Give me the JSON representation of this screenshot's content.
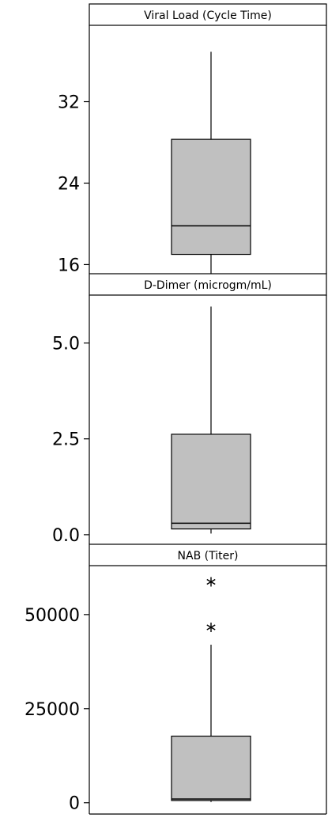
{
  "chart_data": [
    {
      "type": "box",
      "title": "Viral Load (Cycle Time)",
      "ylim": [
        15.1,
        39.5
      ],
      "ticks": [
        16,
        24,
        32
      ],
      "tick_labels": [
        "16",
        "24",
        "32"
      ],
      "box": {
        "whisker_low": 15.0,
        "q1": 17.0,
        "median": 19.8,
        "q3": 28.3,
        "whisker_high": 36.9
      },
      "outliers": []
    },
    {
      "type": "box",
      "title": "D-Dimer (microgm/mL)",
      "ylim": [
        -0.25,
        6.25
      ],
      "ticks": [
        0.0,
        2.5,
        5.0
      ],
      "tick_labels": [
        "0.0",
        "2.5",
        "5.0"
      ],
      "box": {
        "whisker_low": 0.03,
        "q1": 0.15,
        "median": 0.3,
        "q3": 2.62,
        "whisker_high": 5.95
      },
      "outliers": []
    },
    {
      "type": "box",
      "title": "NAB (Titer)",
      "ylim": [
        -3000,
        63000
      ],
      "ticks": [
        0,
        25000,
        50000
      ],
      "tick_labels": [
        "0",
        "25000",
        "50000"
      ],
      "box": {
        "whisker_low": 200,
        "q1": 600,
        "median": 1000,
        "q3": 17700,
        "whisker_high": 42000
      },
      "outliers": [
        46600,
        58700
      ]
    }
  ]
}
